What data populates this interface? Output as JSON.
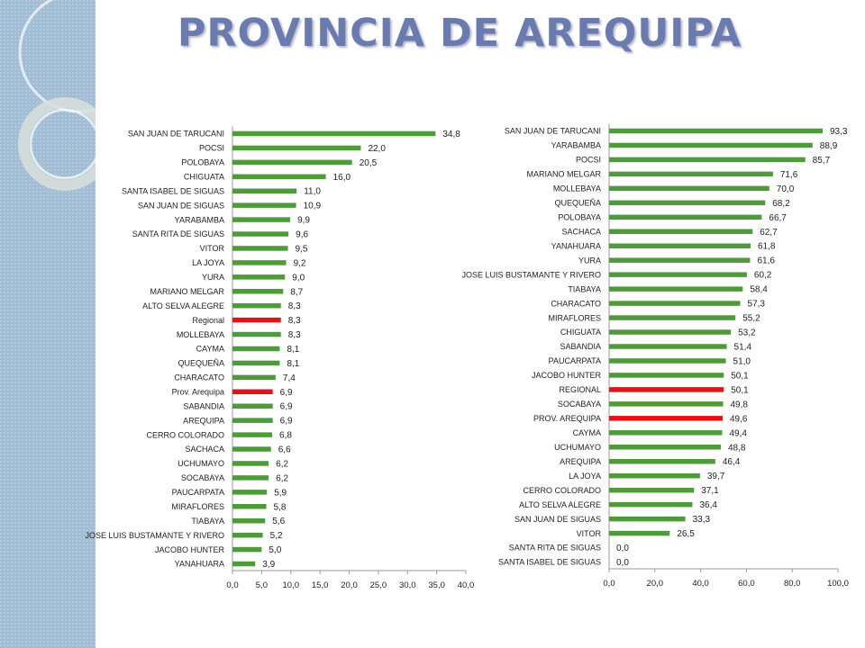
{
  "title": "PROVINCIA DE AREQUIPA",
  "colors": {
    "bar": "#4e9b3a",
    "highlight": "#e01414",
    "title": "#6a7bb0"
  },
  "chart_data": [
    {
      "type": "bar",
      "orientation": "horizontal",
      "xlim": [
        0,
        40
      ],
      "xticks": [
        "0,0",
        "5,0",
        "10,0",
        "15,0",
        "20,0",
        "25,0",
        "30,0",
        "35,0",
        "40,0"
      ],
      "highlight": [
        "Regional",
        "Prov. Arequipa"
      ],
      "categories": [
        "SAN JUAN DE TARUCANI",
        "POCSI",
        "POLOBAYA",
        "CHIGUATA",
        "SANTA ISABEL DE SIGUAS",
        "SAN JUAN DE SIGUAS",
        "YARABAMBA",
        "SANTA RITA DE SIGUAS",
        "VITOR",
        "LA JOYA",
        "YURA",
        "MARIANO MELGAR",
        "ALTO SELVA ALEGRE",
        "Regional",
        "MOLLEBAYA",
        "CAYMA",
        "QUEQUEÑA",
        "CHARACATO",
        "Prov. Arequipa",
        "SABANDIA",
        "AREQUIPA",
        "CERRO COLORADO",
        "SACHACA",
        "UCHUMAYO",
        "SOCABAYA",
        "PAUCARPATA",
        "MIRAFLORES",
        "TIABAYA",
        "JOSE LUIS BUSTAMANTE Y RIVERO",
        "JACOBO HUNTER",
        "YANAHUARA"
      ],
      "values": [
        34.8,
        22.0,
        20.5,
        16.0,
        11.0,
        10.9,
        9.9,
        9.6,
        9.5,
        9.2,
        9.0,
        8.7,
        8.3,
        8.3,
        8.3,
        8.1,
        8.1,
        7.4,
        6.9,
        6.9,
        6.9,
        6.8,
        6.6,
        6.2,
        6.2,
        5.9,
        5.8,
        5.6,
        5.2,
        5.0,
        3.9
      ],
      "value_labels": [
        "34,8",
        "22,0",
        "20,5",
        "16,0",
        "11,0",
        "10,9",
        "9,9",
        "9,6",
        "9,5",
        "9,2",
        "9,0",
        "8,7",
        "8,3",
        "8,3",
        "8,3",
        "8,1",
        "8,1",
        "7,4",
        "6,9",
        "6,9",
        "6,9",
        "6,8",
        "6,6",
        "6,2",
        "6,2",
        "5,9",
        "5,8",
        "5,6",
        "5,2",
        "5,0",
        "3,9"
      ]
    },
    {
      "type": "bar",
      "orientation": "horizontal",
      "xlim": [
        0,
        100
      ],
      "xticks": [
        "0,0",
        "20,0",
        "40,0",
        "60,0",
        "80,0",
        "100,0"
      ],
      "highlight": [
        "REGIONAL",
        "PROV. AREQUIPA"
      ],
      "categories": [
        "SAN JUAN DE TARUCANI",
        "YARABAMBA",
        "POCSI",
        "MARIANO MELGAR",
        "MOLLEBAYA",
        "QUEQUEÑA",
        "POLOBAYA",
        "SACHACA",
        "YANAHUARA",
        "YURA",
        "JOSE LUIS BUSTAMANTE Y RIVERO",
        "TIABAYA",
        "CHARACATO",
        "MIRAFLORES",
        "CHIGUATA",
        "SABANDIA",
        "PAUCARPATA",
        "JACOBO HUNTER",
        "REGIONAL",
        "SOCABAYA",
        "PROV. AREQUIPA",
        "CAYMA",
        "UCHUMAYO",
        "AREQUIPA",
        "LA JOYA",
        "CERRO COLORADO",
        "ALTO SELVA ALEGRE",
        "SAN JUAN DE SIGUAS",
        "VITOR",
        "SANTA RITA DE SIGUAS",
        "SANTA ISABEL DE SIGUAS"
      ],
      "values": [
        93.3,
        88.9,
        85.7,
        71.6,
        70.0,
        68.2,
        66.7,
        62.7,
        61.8,
        61.6,
        60.2,
        58.4,
        57.3,
        55.2,
        53.2,
        51.4,
        51.0,
        50.1,
        50.1,
        49.8,
        49.6,
        49.4,
        48.8,
        46.4,
        39.7,
        37.1,
        36.4,
        33.3,
        26.5,
        0.0,
        0.0
      ],
      "value_labels": [
        "93,3",
        "88,9",
        "85,7",
        "71,6",
        "70,0",
        "68,2",
        "66,7",
        "62,7",
        "61,8",
        "61,6",
        "60,2",
        "58,4",
        "57,3",
        "55,2",
        "53,2",
        "51,4",
        "51,0",
        "50,1",
        "50,1",
        "49,8",
        "49,6",
        "49,4",
        "48,8",
        "46,4",
        "39,7",
        "37,1",
        "36,4",
        "33,3",
        "26,5",
        "0,0",
        "0,0"
      ]
    }
  ]
}
